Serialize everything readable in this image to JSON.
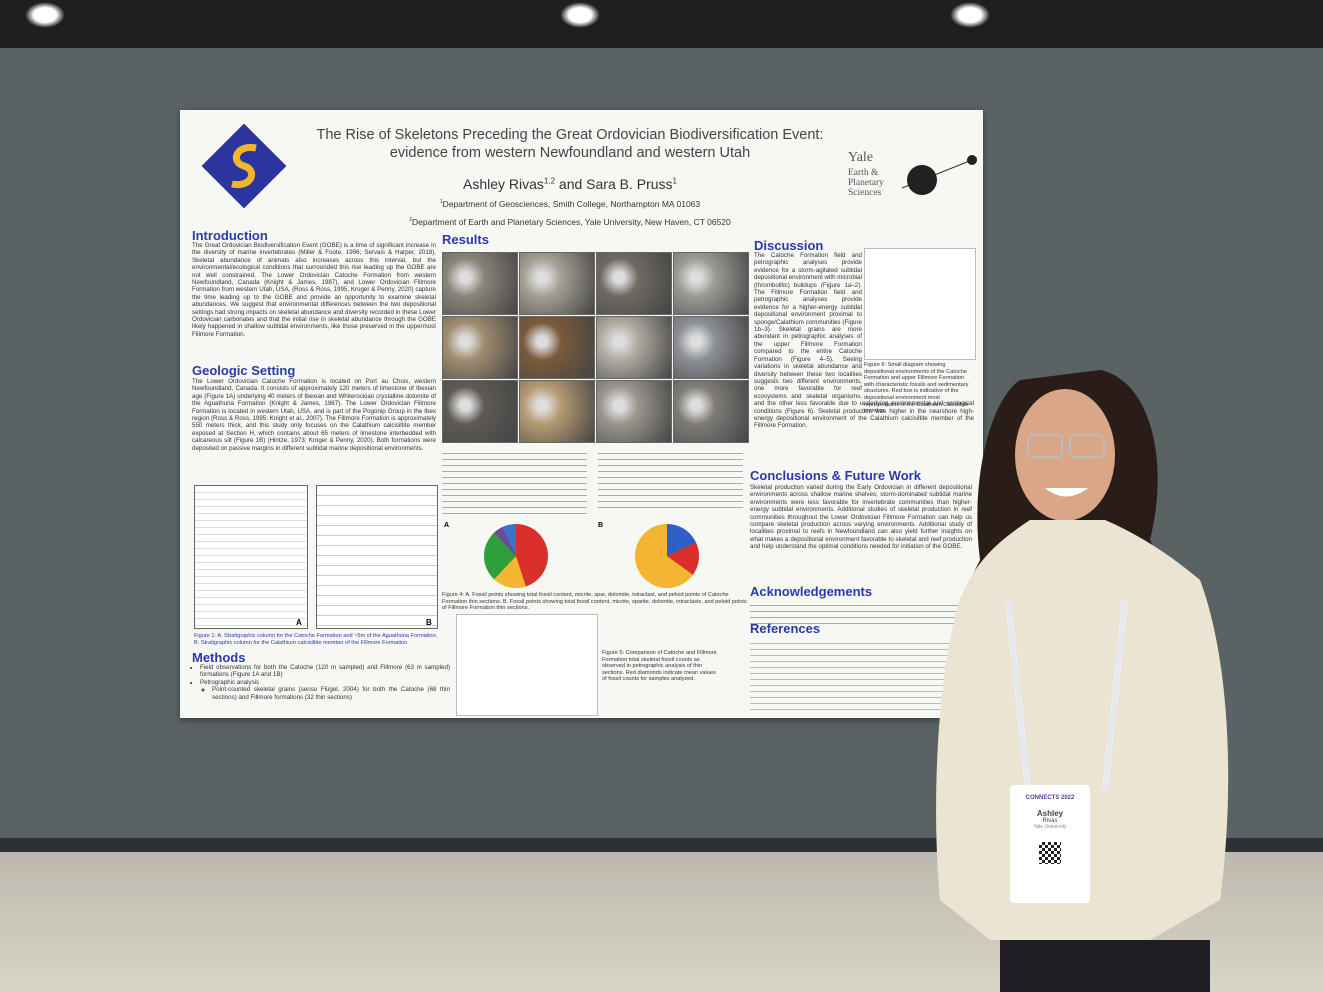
{
  "poster": {
    "title": "The Rise of Skeletons Preceding the Great Ordovician Biodiversification Event: evidence from western Newfoundland and western Utah",
    "author1": "Ashley Rivas",
    "author1_sup": "1,2",
    "author_join": "and",
    "author2": "Sara B. Pruss",
    "author2_sup": "1",
    "affiliations": [
      {
        "sup": "1",
        "text": "Department of Geosciences, Smith College, Northampton MA 01063"
      },
      {
        "sup": "2",
        "text": "Department of Earth and Planetary Sciences, Yale University, New Haven, CT 06520"
      }
    ],
    "yale": {
      "name": "Yale",
      "dept": "Earth & Planetary Sciences"
    },
    "introduction": {
      "heading": "Introduction",
      "text": "The Great Ordovician Biodiversification Event (GOBE) is a time of significant increase in the diversity of marine invertebrates (Miller & Foote, 1996; Servais & Harper, 2018). Skeletal abundance of animals also increases across this interval, but the environmental/ecological conditions that surrounded this rise leading up the GOBE are not well constrained. The Lower Ordovician Catoche Formation from western Newfoundland, Canada (Knight & James, 1987), and Lower Ordovician Fillmore Formation from western Utah, USA, (Ross & Ross, 1995; Kroger & Penny, 2020) capture the time leading up to the GOBE and provide an opportunity to examine skeletal abundances. We suggest that environmental differences between the two depositional settings had strong impacts on skeletal abundance and diversity recorded in these Lower Ordovician carbonates and that the initial rise in skeletal abundance through the GOBE likely happened in shallow subtidal environments, like those preserved in the uppermost Fillmore Formation."
    },
    "geologic_setting": {
      "heading": "Geologic Setting",
      "text": "The Lower Ordovician Catoche Formation is located on Port au Choix, western Newfoundland, Canada. It consists of approximately 120 meters of limestone of Ibexian age (Figure 1A) underlying 40 meters of Ibexian and Whiterockian crystalline dolomite of the Aguathuna Formation (Knight & James, 1987). The Lower Ordovician Fillmore Formation is located in western Utah, USA, and is part of the Pogonip Group in the Ibex region (Ross & Ross, 1995; Knight et al., 2007). The Fillmore Formation is approximately 550 meters thick, and this study only focuses on the Calathium calcisiltite member exposed at Section H, which contains about 65 meters of limestone interbedded with calcareous silt (Figure 1B) (Hintze, 1973; Kroger & Penny, 2020). Both formations were deposited on passive margins in different subtidal marine depositional environments."
    },
    "figure1": {
      "label_a": "A",
      "label_b": "B",
      "caption": "Figure 1: A. Stratigraphic column for the Catoche Formation and ~5m of the Aguathuna Formation. B. Stratigraphic column for the Calathium calcisiltite member of the Fillmore Formation."
    },
    "methods": {
      "heading": "Methods",
      "bullets": [
        "Field observations for both the Catoche (120 m sampled) and Fillmore (63 m sampled) formations (Figure 1A and 1B)",
        "Petrographic analysis"
      ],
      "sub_bullets": [
        "Point-counted skeletal grains (sensu Flügel, 2004) for both the Catoche (68 thin sections) and Fillmore formations (32 thin sections)"
      ]
    },
    "results": {
      "heading": "Results"
    },
    "figure4": {
      "label_a": "A",
      "label_b": "B",
      "caption": "Figure 4: A. Fossil points showing total fossil content, micrite, spar, dolomite, intraclast, and peloid points of Catoche Formation thin sections. B. Fossil points showing total fossil content, micrite, sparite, dolomite, intraclasts, and peloid points of Fillmore Formation thin sections."
    },
    "figure5": {
      "caption": "Figure 5: Comparison of Catoche and Fillmore Formation total skeletal fossil counts as observed in petrographic analysis of thin sections. Red diamonds indicate mean values of fossil counts for samples analyzed."
    },
    "discussion": {
      "heading": "Discussion",
      "text": "The Catoche Formation field and petrographic analyses provide evidence for a storm-agitated subtidal depositional environment with microbial (thrombolitic) buildups (Figure 1a–2). The Fillmore Formation field and petrographic analyses provide evidence for a higher-energy subtidal depositional environment proximal to sponge/Calathium communities (Figure 1b–3). Skeletal grains are more abundant in petrographic analyses of the upper Fillmore Formation compared to the entire Catoche Formation (Figure 4–5). Seeing variations in skeletal abundance and diversity between these two localities suggests two different environments, one more favorable for reef ecosystems and skeletal organisms, and the other less favorable due to underlying environmental and ecological conditions (Figure 6). Skeletal production was higher in the nearshore high-energy depositional environment of the Calathium calcisiltite member of the Fillmore Formation."
    },
    "figure6": {
      "caption": "Figure 6: Small diagram showing depositional environments of the Catoche Formation and upper Fillmore Formation with characteristic fossils and sedimentary structures. Red box is indicative of the depositional environment most representative of the Calathium Calcisiltite member."
    },
    "conclusions": {
      "heading": "Conclusions & Future Work",
      "text": "Skeletal production varied during the Early Ordovician in different depositional environments across shallow marine shelves; storm-dominated subtidal marine environments were less favorable for invertebrate communities than higher-energy subtidal environments. Additional studies of skeletal production in reef communities throughout the Lower Ordovician Fillmore Formation can help us compare skeletal production across varying environments. Additional study of localities proximal to reefs in Newfoundland can also yield further insights on what makes a depositional environment favorable to skeletal and reef production and help understand the optimal conditions needed for initiation of the GOBE."
    },
    "acknowledgements": {
      "heading": "Acknowledgements"
    },
    "references": {
      "heading": "References"
    }
  },
  "badge": {
    "event": "CONNECTS 2022",
    "first_name": "Ashley",
    "last_name": "Rivas",
    "org": "Yale University"
  }
}
